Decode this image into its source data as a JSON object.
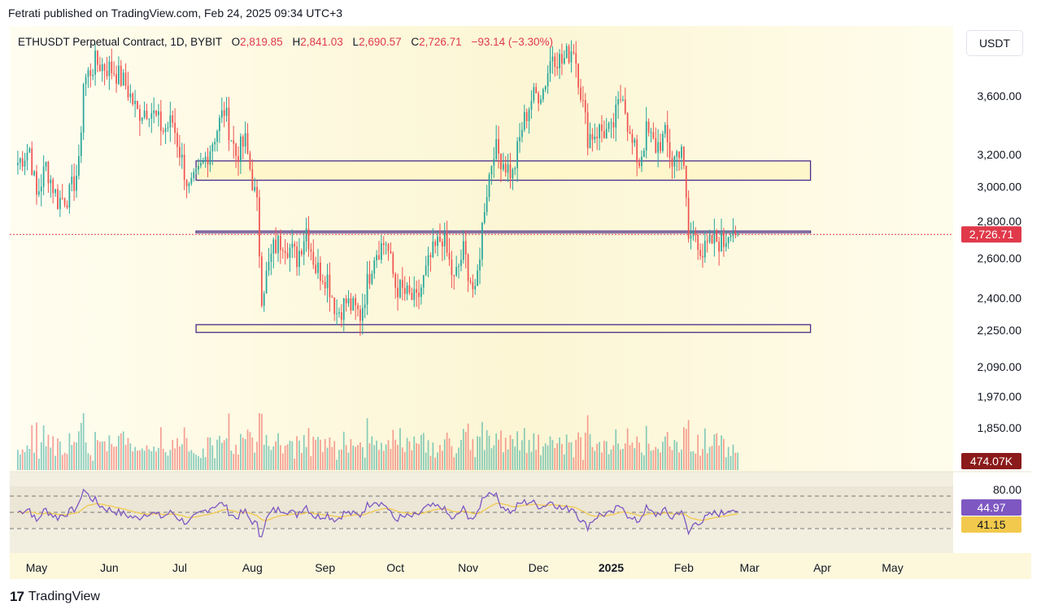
{
  "header": {
    "published_text": "Fetrati published on TradingView.com, Feb 24, 2025 09:34 UTC+3"
  },
  "footer": {
    "logo_mark": "17",
    "logo_text": "TradingView"
  },
  "toolbar": {
    "currency": "USDT"
  },
  "legend": {
    "symbol": "ETHUSDT Perpetual Contract, 1D, BYBIT",
    "open_label": "O",
    "open": "2,819.85",
    "high_label": "H",
    "high": "2,841.03",
    "low_label": "L",
    "low": "2,690.57",
    "close_label": "C",
    "close": "2,726.71",
    "change": "−93.14 (−3.30%)"
  },
  "colors": {
    "up": "#26a69a",
    "down": "#ef5350",
    "background": "#fdf9e3",
    "zone_fill": "#fff6c8",
    "zone_stroke": "#4a2a8a",
    "rsi": "#7e57c2",
    "rsi_ma": "#f2c94c",
    "price_tag": "#e0394a",
    "volume_tag": "#8b1a1a"
  },
  "chart_data": {
    "type": "candlestick",
    "symbol": "ETHUSDT",
    "timeframe": "1D",
    "scale": "log",
    "y_ticks": [
      "3,600.00",
      "3,200.00",
      "3,000.00",
      "2,800.00",
      "2,600.00",
      "2,400.00",
      "2,250.00",
      "2,090.00",
      "1,970.00",
      "1,850.00"
    ],
    "y_tick_values": [
      3600,
      3200,
      3000,
      2800,
      2600,
      2400,
      2250,
      2090,
      1970,
      1850
    ],
    "x_ticks": [
      "May",
      "Jun",
      "Jul",
      "Aug",
      "Sep",
      "Oct",
      "Nov",
      "Dec",
      "2025",
      "Feb",
      "Mar",
      "Apr",
      "May"
    ],
    "x_tick_dates": [
      "2024-05-01",
      "2024-06-01",
      "2024-07-01",
      "2024-08-01",
      "2024-09-01",
      "2024-10-01",
      "2024-11-01",
      "2024-12-01",
      "2025-01-01",
      "2025-02-01",
      "2025-03-01",
      "2025-04-01",
      "2025-05-01"
    ],
    "last_price": 2726.71,
    "last_price_label": "2,726.71",
    "volume_label": "474.07K",
    "zones": [
      {
        "low": 3040,
        "high": 3160,
        "from": "2024-07-08",
        "to": "2025-03-27"
      },
      {
        "low": 2740,
        "high": 2745,
        "from": "2024-07-08",
        "to": "2025-03-27"
      },
      {
        "low": 2240,
        "high": 2275,
        "from": "2024-07-08",
        "to": "2025-03-27"
      }
    ],
    "price_path": [
      [
        "2024-04-23",
        3150
      ],
      [
        "2024-04-28",
        3240
      ],
      [
        "2024-05-01",
        2940
      ],
      [
        "2024-05-05",
        3130
      ],
      [
        "2024-05-10",
        2920
      ],
      [
        "2024-05-15",
        2950
      ],
      [
        "2024-05-19",
        3120
      ],
      [
        "2024-05-21",
        3700
      ],
      [
        "2024-05-26",
        3850
      ],
      [
        "2024-06-03",
        3790
      ],
      [
        "2024-06-08",
        3680
      ],
      [
        "2024-06-13",
        3480
      ],
      [
        "2024-06-18",
        3520
      ],
      [
        "2024-06-24",
        3360
      ],
      [
        "2024-06-28",
        3420
      ],
      [
        "2024-07-05",
        2980
      ],
      [
        "2024-07-08",
        3040
      ],
      [
        "2024-07-14",
        3250
      ],
      [
        "2024-07-20",
        3500
      ],
      [
        "2024-07-25",
        3200
      ],
      [
        "2024-07-29",
        3280
      ],
      [
        "2024-08-03",
        2880
      ],
      [
        "2024-08-05",
        2420
      ],
      [
        "2024-08-10",
        2650
      ],
      [
        "2024-08-14",
        2700
      ],
      [
        "2024-08-20",
        2600
      ],
      [
        "2024-08-24",
        2760
      ],
      [
        "2024-08-28",
        2550
      ],
      [
        "2024-09-02",
        2500
      ],
      [
        "2024-09-06",
        2330
      ],
      [
        "2024-09-10",
        2380
      ],
      [
        "2024-09-16",
        2320
      ],
      [
        "2024-09-22",
        2630
      ],
      [
        "2024-09-27",
        2690
      ],
      [
        "2024-10-01",
        2460
      ],
      [
        "2024-10-05",
        2420
      ],
      [
        "2024-10-10",
        2380
      ],
      [
        "2024-10-16",
        2600
      ],
      [
        "2024-10-21",
        2720
      ],
      [
        "2024-10-26",
        2480
      ],
      [
        "2024-10-30",
        2640
      ],
      [
        "2024-11-04",
        2400
      ],
      [
        "2024-11-08",
        2900
      ],
      [
        "2024-11-12",
        3250
      ],
      [
        "2024-11-20",
        3070
      ],
      [
        "2024-11-24",
        3380
      ],
      [
        "2024-11-28",
        3580
      ],
      [
        "2024-12-03",
        3650
      ],
      [
        "2024-12-07",
        3930
      ],
      [
        "2024-12-11",
        3850
      ],
      [
        "2024-12-16",
        3980
      ],
      [
        "2024-12-19",
        3640
      ],
      [
        "2024-12-22",
        3320
      ],
      [
        "2024-12-27",
        3360
      ],
      [
        "2025-01-01",
        3340
      ],
      [
        "2025-01-06",
        3650
      ],
      [
        "2025-01-09",
        3300
      ],
      [
        "2025-01-13",
        3150
      ],
      [
        "2025-01-16",
        3350
      ],
      [
        "2025-01-20",
        3250
      ],
      [
        "2025-01-24",
        3320
      ],
      [
        "2025-01-27",
        3150
      ],
      [
        "2025-01-31",
        3270
      ],
      [
        "2025-02-02",
        2900
      ],
      [
        "2025-02-03",
        2700
      ],
      [
        "2025-02-06",
        2740
      ],
      [
        "2025-02-09",
        2620
      ],
      [
        "2025-02-14",
        2700
      ],
      [
        "2025-02-18",
        2680
      ],
      [
        "2025-02-21",
        2780
      ],
      [
        "2025-02-24",
        2726.71
      ]
    ],
    "rsi": {
      "upper_band": 70,
      "lower_band": 30,
      "band_label": "80.00",
      "value_label": "44.97",
      "ma_label": "41.15"
    }
  }
}
